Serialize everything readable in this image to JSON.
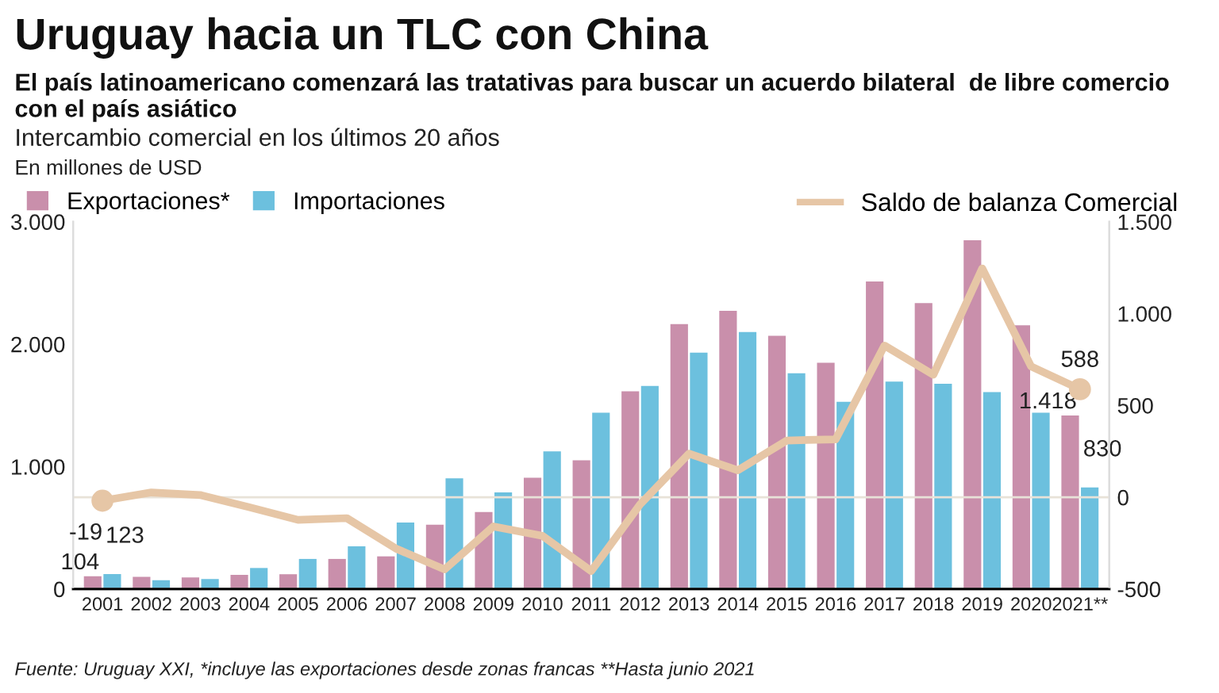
{
  "chart_data": {
    "type": "bar",
    "title": "Uruguay hacia un TLC con China",
    "subtitle": "El país latinoamericano comenzará las tratativas para buscar un acuerdo bilateral  de libre comercio con el país asiático",
    "annotations": [
      "Intercambio comercial en los últimos 20 años",
      "En millones de USD",
      "Fuente: Uruguay XXI, *incluye las exportaciones desde zonas francas **Hasta junio 2021"
    ],
    "categories": [
      "2001",
      "2002",
      "2003",
      "2004",
      "2005",
      "2006",
      "2007",
      "2008",
      "2009",
      "2010",
      "2011",
      "2012",
      "2013",
      "2014",
      "2015",
      "2016",
      "2017",
      "2018",
      "2019",
      "2020",
      "2021**"
    ],
    "series": [
      {
        "name": "Exportaciones*",
        "color": "#c98fab",
        "values": [
          104,
          99,
          95,
          116,
          121,
          246,
          267,
          526,
          629,
          909,
          1052,
          1616,
          2164,
          2272,
          2069,
          1849,
          2513,
          2336,
          2849,
          2155,
          1418
        ],
        "value_labels": [
          "104",
          null,
          null,
          null,
          null,
          null,
          null,
          null,
          null,
          null,
          null,
          null,
          null,
          null,
          null,
          null,
          null,
          null,
          null,
          null,
          "1.418"
        ]
      },
      {
        "name": "Importaciones",
        "color": "#6cc0de",
        "values": [
          123,
          73,
          82,
          172,
          246,
          349,
          543,
          905,
          789,
          1125,
          1440,
          1659,
          1931,
          2099,
          1763,
          1530,
          1694,
          1677,
          1608,
          1440,
          830
        ],
        "value_labels": [
          "123",
          null,
          null,
          null,
          null,
          null,
          null,
          null,
          null,
          null,
          null,
          null,
          null,
          null,
          null,
          null,
          null,
          null,
          null,
          null,
          "830"
        ]
      },
      {
        "name": "Saldo de balanza Comercial",
        "type": "line",
        "axis": "y2",
        "color": "#e6c6a6",
        "values": [
          -19,
          26,
          12,
          -54,
          -123,
          -114,
          -279,
          -393,
          -159,
          -210,
          -402,
          -39,
          237,
          147,
          309,
          315,
          826,
          667,
          1246,
          712,
          588
        ],
        "value_labels": [
          "-19",
          null,
          null,
          null,
          null,
          null,
          null,
          null,
          null,
          null,
          null,
          null,
          null,
          null,
          null,
          null,
          null,
          null,
          null,
          null,
          "588"
        ]
      }
    ],
    "ylim": [
      0,
      3000
    ],
    "yticks": [
      0,
      {
        "value": 1000,
        "label": "1.000"
      },
      {
        "value": 2000,
        "label": "2.000"
      },
      {
        "value": 3000,
        "label": "3.000"
      }
    ],
    "y2lim": [
      -500,
      1500
    ],
    "y2ticks": [
      -500,
      0,
      500,
      {
        "value": 1000,
        "label": "1.000"
      },
      {
        "value": 1500,
        "label": "1.500"
      }
    ],
    "ref_lines": [
      {
        "axis": "y2",
        "value": 0,
        "color": "#e8e2d8"
      }
    ],
    "legend": "top",
    "grid": false,
    "line_style": "solid"
  }
}
